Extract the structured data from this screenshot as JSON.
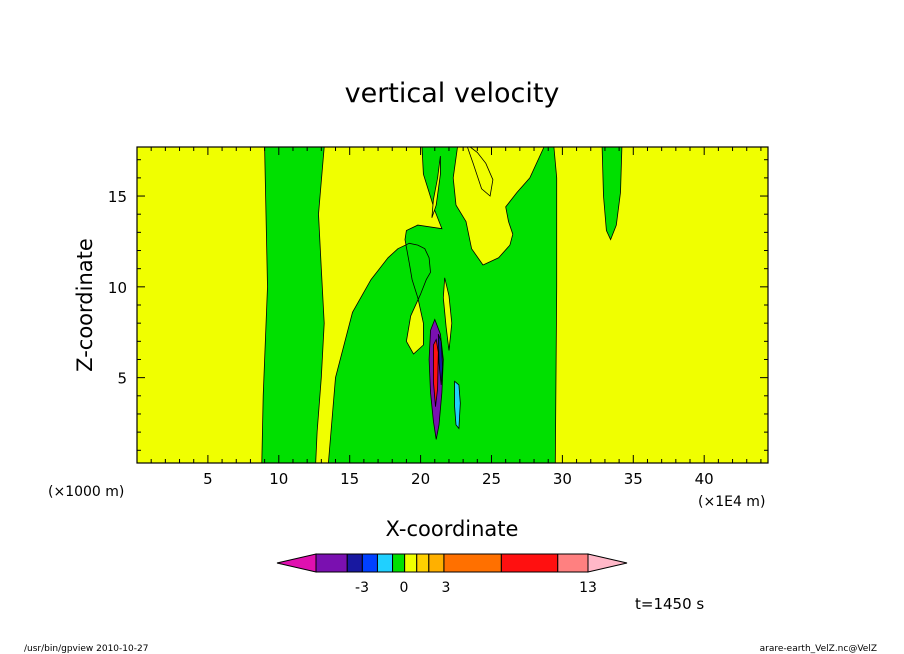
{
  "chart_data": {
    "type": "heatmap",
    "title": "vertical velocity",
    "xlabel": "X-coordinate",
    "ylabel": "Z-coordinate",
    "x_unit_left": "(×1000 m)",
    "x_unit_right": "(×1E4 m)",
    "xlim": [
      0,
      44.5
    ],
    "ylim": [
      0.3,
      17.7
    ],
    "x_ticks": [
      5,
      10,
      15,
      20,
      25,
      30,
      35,
      40
    ],
    "y_ticks": [
      5,
      10,
      15
    ],
    "time_label": "t=1450 s",
    "colorbar": {
      "colors": [
        "#e010b0",
        "#7a10b0",
        "#1818a0",
        "#0040ff",
        "#20d0ff",
        "#00e000",
        "#f0ff00",
        "#ffd000",
        "#ffb000",
        "#ff7000",
        "#ff1010",
        "#ff8080",
        "#ffb8c8"
      ],
      "tick_labels": [
        "-3",
        "0",
        "3",
        "13"
      ]
    },
    "regions": [
      {
        "level": "green",
        "color": "#00e000",
        "x": [
          9.0,
          13.2,
          12.8,
          13.0,
          13.2,
          13.0,
          12.7,
          12.6,
          8.8,
          8.9,
          9.2,
          9.1
        ],
        "y": [
          17.7,
          17.7,
          14.0,
          11.0,
          8.0,
          5.0,
          2.0,
          0.3,
          0.3,
          4.0,
          10.0,
          14.0
        ]
      },
      {
        "level": "green",
        "color": "#00e000",
        "x": [
          13.5,
          14.0,
          15.2,
          16.5,
          17.7,
          18.4,
          19.2,
          19.8,
          20.3,
          20.6,
          20.7,
          20.4,
          20.0,
          19.3,
          19.0,
          19.5,
          20.2,
          20.2,
          19.8,
          19.4,
          19.2,
          18.9,
          19.0,
          19.8,
          21.5,
          21.0,
          20.6,
          20.2,
          20.1,
          20.6,
          21.0,
          21.8,
          22.6,
          22.3,
          22.5,
          23.2,
          23.6,
          24.4,
          25.5,
          26.3,
          26.5,
          26.2,
          26.0,
          26.8,
          27.7,
          28.7,
          29.4,
          29.6,
          29.6,
          29.5,
          13.9
        ],
        "y": [
          0.3,
          5.0,
          8.6,
          10.4,
          11.6,
          12.1,
          12.4,
          12.3,
          12.1,
          11.6,
          10.8,
          10.4,
          9.6,
          8.4,
          7.0,
          6.3,
          6.8,
          8.0,
          9.4,
          10.4,
          11.3,
          12.6,
          13.1,
          13.4,
          13.2,
          14.2,
          15.2,
          16.2,
          17.7,
          17.7,
          17.7,
          17.7,
          17.7,
          16.0,
          14.5,
          13.6,
          12.1,
          11.2,
          11.6,
          12.3,
          12.9,
          13.6,
          14.4,
          15.2,
          16.0,
          17.7,
          17.7,
          16.0,
          10.0,
          0.3,
          0.3
        ]
      },
      {
        "level": "green",
        "color": "#00e000",
        "x": [
          32.8,
          34.2,
          34.1,
          33.8,
          33.4,
          33.1,
          32.9
        ],
        "y": [
          17.7,
          17.7,
          15.2,
          13.4,
          12.6,
          13.1,
          15.0
        ]
      },
      {
        "level": "yellow",
        "color": "#f0ff00",
        "x": [
          21.4,
          21.2,
          20.9,
          20.8,
          21.1,
          21.4
        ],
        "y": [
          17.2,
          16.0,
          14.8,
          13.8,
          14.5,
          16.2
        ]
      },
      {
        "level": "yellow",
        "color": "#f0ff00",
        "x": [
          23.3,
          23.7,
          24.3,
          24.9,
          25.1,
          24.6,
          24.0,
          23.5
        ],
        "y": [
          17.7,
          16.8,
          15.4,
          15.0,
          15.9,
          16.8,
          17.4,
          17.7
        ]
      },
      {
        "level": "yellow",
        "color": "#f0ff00",
        "x": [
          21.7,
          22.0,
          22.2,
          22.0,
          21.8,
          21.6
        ],
        "y": [
          10.5,
          9.5,
          8.0,
          6.5,
          7.8,
          9.4
        ]
      },
      {
        "level": "blue",
        "color": "#20d0ff",
        "x": [
          22.4,
          22.7,
          22.8,
          22.7,
          22.5,
          22.4
        ],
        "y": [
          4.8,
          4.6,
          3.6,
          2.2,
          2.4,
          3.4
        ]
      },
      {
        "level": "purple",
        "color": "#7a10b0",
        "x": [
          20.7,
          21.0,
          21.4,
          21.6,
          21.5,
          21.3,
          21.1,
          20.9,
          20.7,
          20.6
        ],
        "y": [
          7.6,
          8.2,
          7.4,
          6.0,
          4.2,
          2.4,
          1.6,
          2.6,
          4.2,
          6.0
        ]
      },
      {
        "level": "red",
        "color": "#ff1010",
        "x": [
          20.9,
          21.1,
          21.25,
          21.2,
          21.05,
          20.9
        ],
        "y": [
          6.8,
          7.1,
          6.4,
          4.4,
          3.4,
          4.8
        ]
      },
      {
        "level": "blue",
        "color": "#1818a0",
        "x": [
          21.25,
          21.45,
          21.55,
          21.45,
          21.3
        ],
        "y": [
          7.4,
          7.0,
          5.6,
          4.6,
          5.8
        ]
      }
    ]
  },
  "footer": {
    "left": "/usr/bin/gpview   2010-10-27",
    "right": "arare-earth_VelZ.nc@VelZ"
  }
}
